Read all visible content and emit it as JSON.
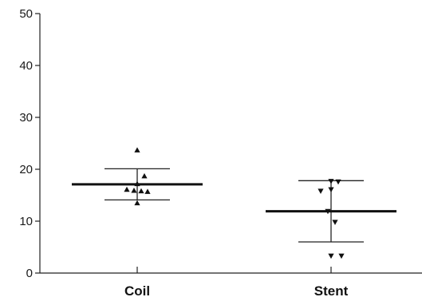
{
  "chart_data": {
    "type": "scatter",
    "title": "",
    "xlabel": "",
    "ylabel": "",
    "ylim": [
      0,
      50
    ],
    "yticks": [
      0,
      10,
      20,
      30,
      40,
      50
    ],
    "ytick_labels": [
      "0",
      "10",
      "20",
      "30",
      "40",
      "50"
    ],
    "categories": [
      "Coil",
      "Stent"
    ],
    "grid": false,
    "legend": "none",
    "groups": [
      {
        "category": "Coil",
        "marker": "triangle-up",
        "color": "#111111",
        "mean": 17.1,
        "sd_low": 14.1,
        "sd_high": 20.1,
        "points": [
          23.7,
          18.7,
          17.2,
          16.1,
          15.9,
          15.8,
          15.7,
          13.5
        ]
      },
      {
        "category": "Stent",
        "marker": "triangle-down",
        "color": "#111111",
        "mean": 11.9,
        "sd_low": 6.0,
        "sd_high": 17.8,
        "points": [
          17.7,
          17.6,
          16.1,
          15.8,
          11.9,
          9.8,
          3.3,
          3.3
        ]
      }
    ]
  }
}
